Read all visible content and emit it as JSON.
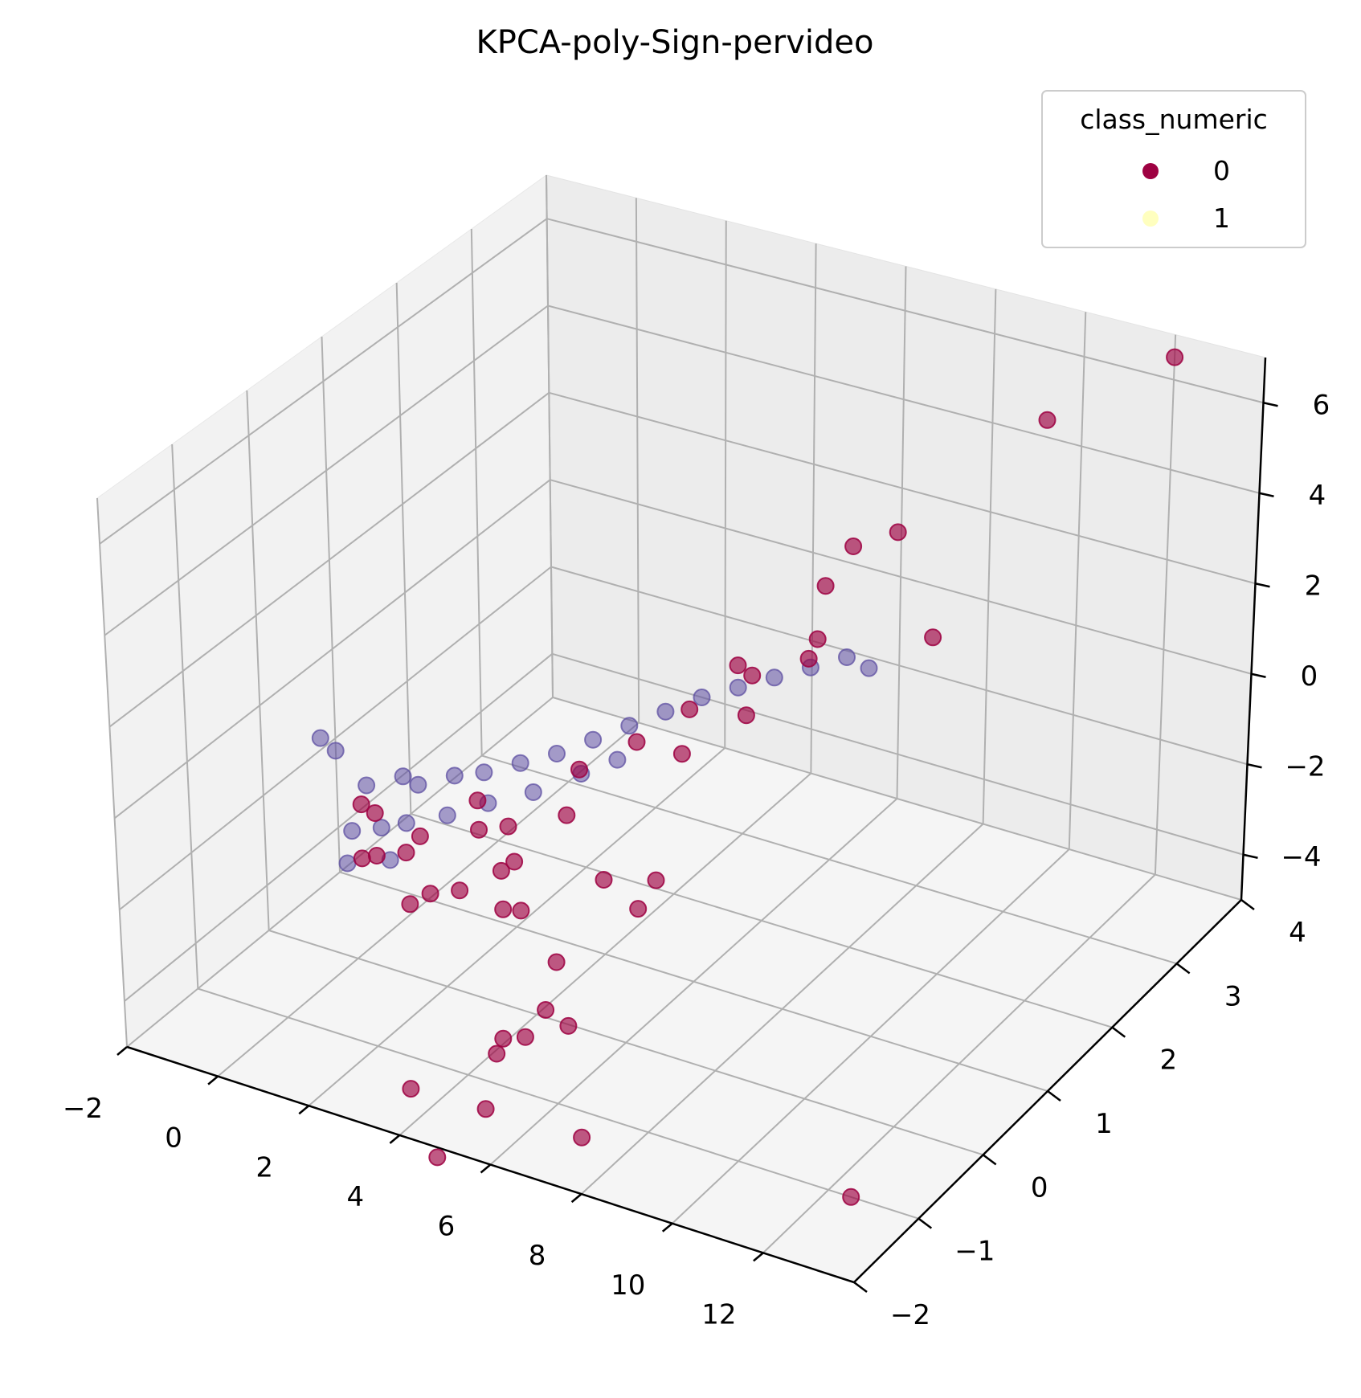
{
  "chart_data": {
    "type": "scatter",
    "projection": "3d",
    "title": "KPCA-poly-Sign-pervideo",
    "xlabel": "",
    "ylabel": "",
    "zlabel": "",
    "xlim": [
      -2,
      14
    ],
    "ylim": [
      -2,
      4
    ],
    "zlim": [
      -5,
      7
    ],
    "x_ticks": [
      "−2",
      "0",
      "2",
      "4",
      "6",
      "8",
      "10",
      "12"
    ],
    "y_ticks": [
      "−2",
      "−1",
      "0",
      "1",
      "2",
      "3",
      "4"
    ],
    "z_ticks": [
      "−4",
      "−2",
      "0",
      "2",
      "4",
      "6"
    ],
    "grid": true,
    "legend": {
      "title": "class_numeric",
      "placement": "top-right",
      "entries": [
        {
          "label": "0",
          "color": "#9e0142"
        },
        {
          "label": "1",
          "color": "#ffffbf"
        }
      ]
    },
    "series": [
      {
        "name": "0",
        "color": "#9e0142",
        "alpha": 0.65,
        "points": [
          [
            12.0,
            4.0,
            6.5
          ],
          [
            10.0,
            3.5,
            5.3
          ],
          [
            7.5,
            3.0,
            2.8
          ],
          [
            6.5,
            3.0,
            2.2
          ],
          [
            6.2,
            2.8,
            1.5
          ],
          [
            6.5,
            2.5,
            0.8
          ],
          [
            6.3,
            2.5,
            0.3
          ],
          [
            5.5,
            2.0,
            0.6
          ],
          [
            5.2,
            1.5,
            0.2
          ],
          [
            5.5,
            2.2,
            0.1
          ],
          [
            6.0,
            1.8,
            -0.1
          ],
          [
            5.5,
            1.2,
            -0.3
          ],
          [
            4.0,
            1.5,
            -0.9
          ],
          [
            3.5,
            1.0,
            -1.0
          ],
          [
            4.0,
            0.5,
            -1.2
          ],
          [
            3.0,
            0.3,
            -1.5
          ],
          [
            3.6,
            0.0,
            -1.7
          ],
          [
            3.3,
            0.0,
            -2.0
          ],
          [
            4.2,
            -0.3,
            -2.2
          ],
          [
            3.8,
            -0.3,
            -2.3
          ],
          [
            2.0,
            0.5,
            -1.5
          ],
          [
            2.5,
            0.2,
            -1.6
          ],
          [
            1.5,
            0.0,
            -1.8
          ],
          [
            0.5,
            0.0,
            -1.6
          ],
          [
            1.0,
            -0.3,
            -2.0
          ],
          [
            1.5,
            -0.2,
            -1.9
          ],
          [
            2.5,
            -0.5,
            -2.1
          ],
          [
            3.0,
            -0.4,
            -2.0
          ],
          [
            2.2,
            -0.6,
            -2.3
          ],
          [
            4.8,
            0.5,
            -2.4
          ],
          [
            5.5,
            0.8,
            -2.6
          ],
          [
            5.4,
            0.6,
            -3.0
          ],
          [
            4.8,
            -0.2,
            -3.3
          ],
          [
            5.0,
            -0.5,
            -3.9
          ],
          [
            5.0,
            -0.8,
            -4.1
          ],
          [
            4.5,
            -0.8,
            -4.3
          ],
          [
            4.5,
            -0.9,
            -4.5
          ],
          [
            5.5,
            -0.5,
            -4.1
          ],
          [
            3.5,
            -1.5,
            -4.8
          ],
          [
            5.0,
            -1.4,
            -4.9
          ],
          [
            4.5,
            -1.8,
            -5.6
          ],
          [
            6.5,
            -1.0,
            -5.6
          ],
          [
            12.5,
            -1.0,
            -5.0
          ],
          [
            8.0,
            3.2,
            0.3
          ],
          [
            1.0,
            -0.5,
            -1.8
          ],
          [
            0.2,
            0.0,
            -1.5
          ]
        ]
      },
      {
        "name": "",
        "color": "#5e4fa2",
        "alpha": 0.55,
        "points": [
          [
            -1.5,
            0.5,
            -1.2
          ],
          [
            -1.0,
            0.4,
            -1.2
          ],
          [
            0.0,
            0.2,
            -1.4
          ],
          [
            0.5,
            0.4,
            -1.3
          ],
          [
            1.0,
            0.3,
            -1.2
          ],
          [
            1.5,
            0.5,
            -1.1
          ],
          [
            2.0,
            0.6,
            -1.0
          ],
          [
            2.5,
            0.8,
            -0.9
          ],
          [
            3.0,
            1.0,
            -0.8
          ],
          [
            3.5,
            1.2,
            -0.6
          ],
          [
            4.0,
            1.4,
            -0.4
          ],
          [
            4.5,
            1.6,
            -0.2
          ],
          [
            5.0,
            1.8,
            0.0
          ],
          [
            5.5,
            2.0,
            0.1
          ],
          [
            6.0,
            2.2,
            0.2
          ],
          [
            6.5,
            2.4,
            0.3
          ],
          [
            7.0,
            2.6,
            0.4
          ],
          [
            7.5,
            2.6,
            0.3
          ],
          [
            0.3,
            -0.2,
            -1.8
          ],
          [
            0.8,
            -0.1,
            -1.7
          ],
          [
            1.2,
            0.0,
            -1.6
          ],
          [
            1.8,
            0.2,
            -1.5
          ],
          [
            2.4,
            0.4,
            -1.3
          ],
          [
            3.1,
            0.6,
            -1.1
          ],
          [
            3.7,
            0.9,
            -0.9
          ],
          [
            4.2,
            1.1,
            -0.7
          ],
          [
            0.5,
            -0.4,
            -2.2
          ],
          [
            1.3,
            -0.3,
            -2.0
          ]
        ]
      }
    ]
  }
}
